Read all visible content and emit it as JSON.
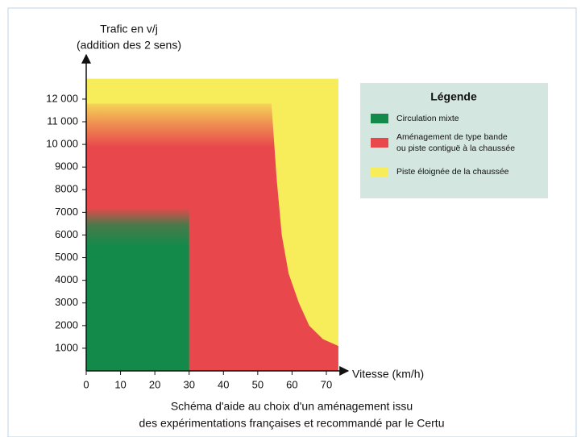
{
  "chart_data": {
    "type": "region",
    "y_label_lines": [
      "Trafic en v/j",
      "(addition des 2 sens)"
    ],
    "x_label": "Vitesse (km/h)",
    "caption_lines": [
      "Schéma d'aide au choix d'un aménagement issu",
      "des expérimentations françaises et recommandé par le Certu"
    ],
    "xlim": [
      0,
      73.5
    ],
    "ylim": [
      0,
      13000
    ],
    "xticks": [
      0,
      10,
      20,
      30,
      40,
      50,
      60,
      70
    ],
    "yticks": [
      {
        "value": 1000,
        "label": "1000"
      },
      {
        "value": 2000,
        "label": "2000"
      },
      {
        "value": 3000,
        "label": "3000"
      },
      {
        "value": 4000,
        "label": "4000"
      },
      {
        "value": 5000,
        "label": "5000"
      },
      {
        "value": 6000,
        "label": "6000"
      },
      {
        "value": 7000,
        "label": "7000"
      },
      {
        "value": 8000,
        "label": "8000"
      },
      {
        "value": 9000,
        "label": "9000"
      },
      {
        "value": 10000,
        "label": "10 000"
      },
      {
        "value": 11000,
        "label": "11 000"
      },
      {
        "value": 12000,
        "label": "12 000"
      }
    ],
    "legend_title": "Légende",
    "regions": [
      {
        "name": "Piste éloignée de la chaussée",
        "color": "#f7ec5a",
        "points": [
          [
            0,
            0
          ],
          [
            73.5,
            0
          ],
          [
            73.5,
            12900
          ],
          [
            0,
            12900
          ]
        ]
      },
      {
        "name": "Aménagement de type bande ou piste contiguë à la chaussée",
        "color": "#e8484b",
        "points": [
          [
            0,
            0
          ],
          [
            73.5,
            0
          ],
          [
            73.5,
            1100
          ],
          [
            69,
            1400
          ],
          [
            65,
            2000
          ],
          [
            62,
            3000
          ],
          [
            59,
            4300
          ],
          [
            57,
            6000
          ],
          [
            55.5,
            8500
          ],
          [
            54,
            11800
          ],
          [
            0,
            11800
          ]
        ]
      },
      {
        "name": "Circulation mixte",
        "color": "#138a4a",
        "points": [
          [
            0,
            0
          ],
          [
            30,
            0
          ],
          [
            30,
            7200
          ],
          [
            0,
            7200
          ]
        ]
      }
    ]
  }
}
